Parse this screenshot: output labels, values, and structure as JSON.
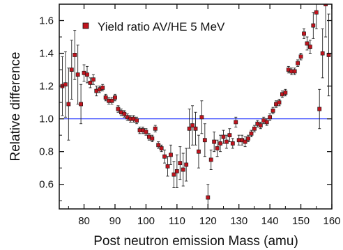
{
  "chart_data": {
    "type": "scatter",
    "xlabel": "Post neutron emission Mass (amu)",
    "ylabel": "Relative difference",
    "xlim": [
      72,
      160
    ],
    "ylim": [
      0.45,
      1.7
    ],
    "xticks": [
      80,
      90,
      100,
      110,
      120,
      130,
      140,
      150,
      160
    ],
    "yticks": [
      0.6,
      0.8,
      1.0,
      1.2,
      1.4,
      1.6
    ],
    "reference_line": 1.0,
    "legend": {
      "position": "top-right"
    },
    "series": [
      {
        "name": "Yield ratio AV/HE 5 MeV",
        "marker_color": "#c0141e",
        "points": [
          {
            "x": 73,
            "y": 1.2,
            "err": 0.18
          },
          {
            "x": 74,
            "y": 1.21,
            "err": 0.2
          },
          {
            "x": 75,
            "y": 1.09,
            "err": 0.22
          },
          {
            "x": 76,
            "y": 1.3,
            "err": 0.18
          },
          {
            "x": 77,
            "y": 1.39,
            "err": 0.15
          },
          {
            "x": 78,
            "y": 1.27,
            "err": 0.18
          },
          {
            "x": 79,
            "y": 1.09,
            "err": 0.12
          },
          {
            "x": 80,
            "y": 1.28,
            "err": 0.05
          },
          {
            "x": 81,
            "y": 1.27,
            "err": 0.05
          },
          {
            "x": 82,
            "y": 1.22,
            "err": 0.03
          },
          {
            "x": 83,
            "y": 1.24,
            "err": 0.03
          },
          {
            "x": 84,
            "y": 1.17,
            "err": 0.03
          },
          {
            "x": 85,
            "y": 1.18,
            "err": 0.02
          },
          {
            "x": 86,
            "y": 1.19,
            "err": 0.02
          },
          {
            "x": 87,
            "y": 1.13,
            "err": 0.02
          },
          {
            "x": 88,
            "y": 1.11,
            "err": 0.02
          },
          {
            "x": 89,
            "y": 1.11,
            "err": 0.02
          },
          {
            "x": 90,
            "y": 1.13,
            "err": 0.02
          },
          {
            "x": 91,
            "y": 1.06,
            "err": 0.02
          },
          {
            "x": 92,
            "y": 1.04,
            "err": 0.02
          },
          {
            "x": 93,
            "y": 1.03,
            "err": 0.02
          },
          {
            "x": 94,
            "y": 1.01,
            "err": 0.02
          },
          {
            "x": 95,
            "y": 1.0,
            "err": 0.02
          },
          {
            "x": 96,
            "y": 1.0,
            "err": 0.02
          },
          {
            "x": 97,
            "y": 0.99,
            "err": 0.02
          },
          {
            "x": 98,
            "y": 0.93,
            "err": 0.02
          },
          {
            "x": 99,
            "y": 0.93,
            "err": 0.02
          },
          {
            "x": 100,
            "y": 0.92,
            "err": 0.02
          },
          {
            "x": 101,
            "y": 0.89,
            "err": 0.02
          },
          {
            "x": 102,
            "y": 0.88,
            "err": 0.02
          },
          {
            "x": 103,
            "y": 0.94,
            "err": 0.02
          },
          {
            "x": 104,
            "y": 0.84,
            "err": 0.02
          },
          {
            "x": 105,
            "y": 0.82,
            "err": 0.02
          },
          {
            "x": 106,
            "y": 0.77,
            "err": 0.04
          },
          {
            "x": 107,
            "y": 0.71,
            "err": 0.06
          },
          {
            "x": 108,
            "y": 0.78,
            "err": 0.06
          },
          {
            "x": 109,
            "y": 0.66,
            "err": 0.08
          },
          {
            "x": 110,
            "y": 0.68,
            "err": 0.1
          },
          {
            "x": 111,
            "y": 0.73,
            "err": 0.1
          },
          {
            "x": 112,
            "y": 0.69,
            "err": 0.1
          },
          {
            "x": 113,
            "y": 0.72,
            "err": 0.1
          },
          {
            "x": 114,
            "y": 0.94,
            "err": 0.12
          },
          {
            "x": 115,
            "y": 0.96,
            "err": 0.12
          },
          {
            "x": 116,
            "y": 0.94,
            "err": 0.1
          },
          {
            "x": 117,
            "y": 0.8,
            "err": 0.1
          },
          {
            "x": 118,
            "y": 1.01,
            "err": 0.1
          },
          {
            "x": 119,
            "y": 0.87,
            "err": 0.1
          },
          {
            "x": 120,
            "y": 0.52,
            "err": 0.08
          },
          {
            "x": 121,
            "y": 0.75,
            "err": 0.06
          },
          {
            "x": 122,
            "y": 0.86,
            "err": 0.06
          },
          {
            "x": 123,
            "y": 0.82,
            "err": 0.05
          },
          {
            "x": 124,
            "y": 0.85,
            "err": 0.05
          },
          {
            "x": 125,
            "y": 0.89,
            "err": 0.04
          },
          {
            "x": 126,
            "y": 0.86,
            "err": 0.04
          },
          {
            "x": 127,
            "y": 0.9,
            "err": 0.04
          },
          {
            "x": 128,
            "y": 0.85,
            "err": 0.03
          },
          {
            "x": 129,
            "y": 0.98,
            "err": 0.03
          },
          {
            "x": 130,
            "y": 0.87,
            "err": 0.03
          },
          {
            "x": 131,
            "y": 0.87,
            "err": 0.03
          },
          {
            "x": 132,
            "y": 0.86,
            "err": 0.03
          },
          {
            "x": 133,
            "y": 0.88,
            "err": 0.02
          },
          {
            "x": 134,
            "y": 0.91,
            "err": 0.02
          },
          {
            "x": 135,
            "y": 0.94,
            "err": 0.02
          },
          {
            "x": 136,
            "y": 0.97,
            "err": 0.02
          },
          {
            "x": 137,
            "y": 0.96,
            "err": 0.02
          },
          {
            "x": 138,
            "y": 0.99,
            "err": 0.02
          },
          {
            "x": 139,
            "y": 0.98,
            "err": 0.02
          },
          {
            "x": 140,
            "y": 1.01,
            "err": 0.02
          },
          {
            "x": 141,
            "y": 1.05,
            "err": 0.02
          },
          {
            "x": 142,
            "y": 1.09,
            "err": 0.02
          },
          {
            "x": 143,
            "y": 1.1,
            "err": 0.02
          },
          {
            "x": 144,
            "y": 1.15,
            "err": 0.02
          },
          {
            "x": 145,
            "y": 1.16,
            "err": 0.02
          },
          {
            "x": 146,
            "y": 1.3,
            "err": 0.02
          },
          {
            "x": 147,
            "y": 1.29,
            "err": 0.02
          },
          {
            "x": 148,
            "y": 1.29,
            "err": 0.02
          },
          {
            "x": 149,
            "y": 1.34,
            "err": 0.02
          },
          {
            "x": 150,
            "y": 1.38,
            "err": 0.02
          },
          {
            "x": 151,
            "y": 1.52,
            "err": 0.03
          },
          {
            "x": 152,
            "y": 1.46,
            "err": 0.04
          },
          {
            "x": 153,
            "y": 1.44,
            "err": 0.04
          },
          {
            "x": 154,
            "y": 1.57,
            "err": 0.08
          },
          {
            "x": 155,
            "y": 1.65,
            "err": 0.1
          },
          {
            "x": 156,
            "y": 1.06,
            "err": 0.12
          },
          {
            "x": 157,
            "y": 1.4,
            "err": 0.15
          },
          {
            "x": 158,
            "y": 1.7,
            "err": 0.2
          },
          {
            "x": 159,
            "y": 1.39,
            "err": 0.25
          }
        ]
      }
    ]
  }
}
